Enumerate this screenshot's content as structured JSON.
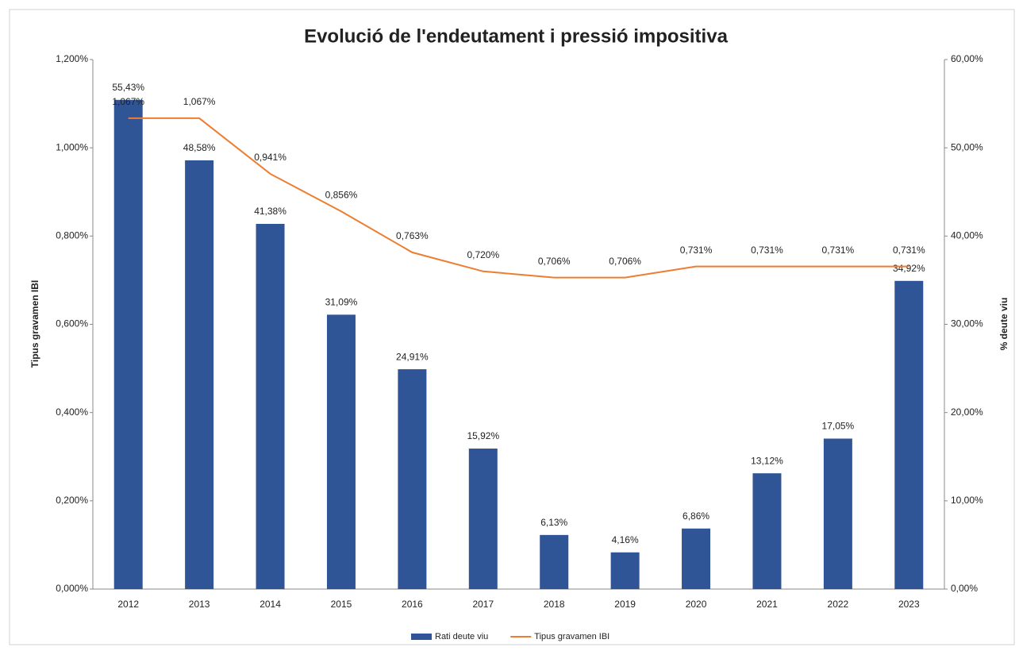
{
  "chart_data": {
    "type": "bar",
    "title": "Evolució de l'endeutament i pressió impositiva",
    "categories": [
      "2012",
      "2013",
      "2014",
      "2015",
      "2016",
      "2017",
      "2018",
      "2019",
      "2020",
      "2021",
      "2022",
      "2023"
    ],
    "series": [
      {
        "name": "Rati deute viu",
        "type": "bar",
        "axis": "y2",
        "color": "#2f5597",
        "values": [
          55.43,
          48.58,
          41.38,
          31.09,
          24.91,
          15.92,
          6.13,
          4.16,
          6.86,
          13.12,
          17.05,
          34.92
        ],
        "value_labels": [
          "55,43%",
          "48,58%",
          "41,38%",
          "31,09%",
          "24,91%",
          "15,92%",
          "6,13%",
          "4,16%",
          "6,86%",
          "13,12%",
          "17,05%",
          "34,92%"
        ]
      },
      {
        "name": "Tipus gravamen IBI",
        "type": "line",
        "color": "#ed7d31",
        "values": [
          1.067,
          1.067,
          0.941,
          0.856,
          0.763,
          0.72,
          0.706,
          0.706,
          0.731,
          0.731,
          0.731,
          0.731
        ],
        "value_labels": [
          "1,067%",
          "1,067%",
          "0,941%",
          "0,856%",
          "0,763%",
          "0,720%",
          "0,706%",
          "0,706%",
          "0,731%",
          "0,731%",
          "0,731%",
          "0,731%"
        ]
      }
    ],
    "ylabel": "Tipus gravamen IBI",
    "y2label": "% deute viu",
    "ylim": [
      0,
      1.2
    ],
    "yticks": [
      {
        "value": 0,
        "label": "0,000%"
      },
      {
        "value": 0.2,
        "label": "0,200%"
      },
      {
        "value": 0.4,
        "label": "0,400%"
      },
      {
        "value": 0.6,
        "label": "0,600%"
      },
      {
        "value": 0.8,
        "label": "0,800%"
      },
      {
        "value": 1.0,
        "label": "1,000%"
      },
      {
        "value": 1.2,
        "label": "1,200%"
      }
    ],
    "y2lim": [
      0,
      60
    ],
    "y2ticks": [
      {
        "value": 0,
        "label": "0,00%"
      },
      {
        "value": 10,
        "label": "10,00%"
      },
      {
        "value": 20,
        "label": "20,00%"
      },
      {
        "value": 30,
        "label": "30,00%"
      },
      {
        "value": 40,
        "label": "40,00%"
      },
      {
        "value": 50,
        "label": "50,00%"
      },
      {
        "value": 60,
        "label": "60,00%"
      }
    ],
    "legend": "bottom"
  }
}
